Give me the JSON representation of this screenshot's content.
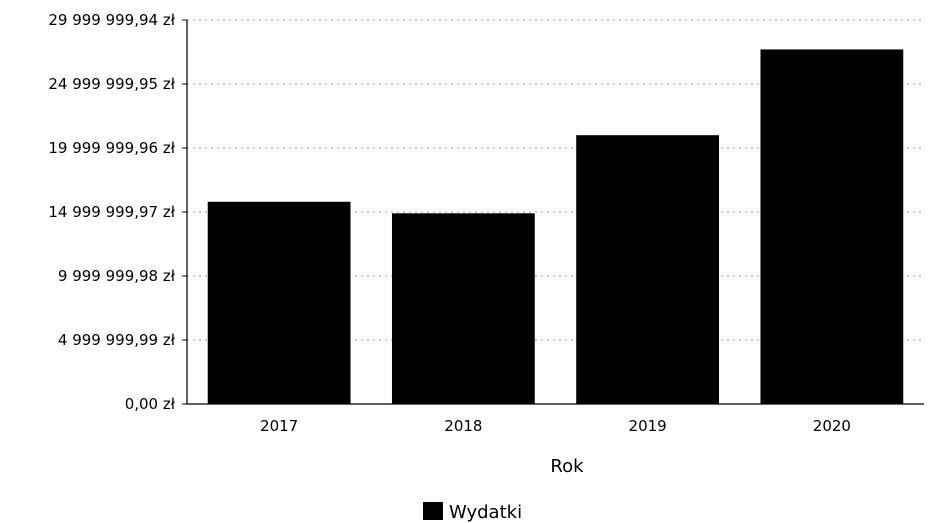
{
  "chart_data": {
    "type": "bar",
    "categories": [
      "2017",
      "2018",
      "2019",
      "2020"
    ],
    "series": [
      {
        "name": "Wydatki",
        "values": [
          15800000,
          14900000,
          21000000,
          27700000
        ]
      }
    ],
    "xlabel": "Rok",
    "ylabel": "",
    "ylim": [
      0,
      29999999.94
    ],
    "yticks": [
      0,
      4999999.99,
      9999999.98,
      14999999.97,
      19999999.96,
      24999999.95,
      29999999.94
    ],
    "ytick_labels": [
      "0,00 zł",
      "4 999 999,99 zł",
      "9 999 999,98 zł",
      "14 999 999,97 zł",
      "19 999 999,96 zł",
      "24 999 999,95 zł",
      "29 999 999,94 zł"
    ],
    "grid": true,
    "legend_position": "bottom",
    "bar_color": "#000000"
  }
}
